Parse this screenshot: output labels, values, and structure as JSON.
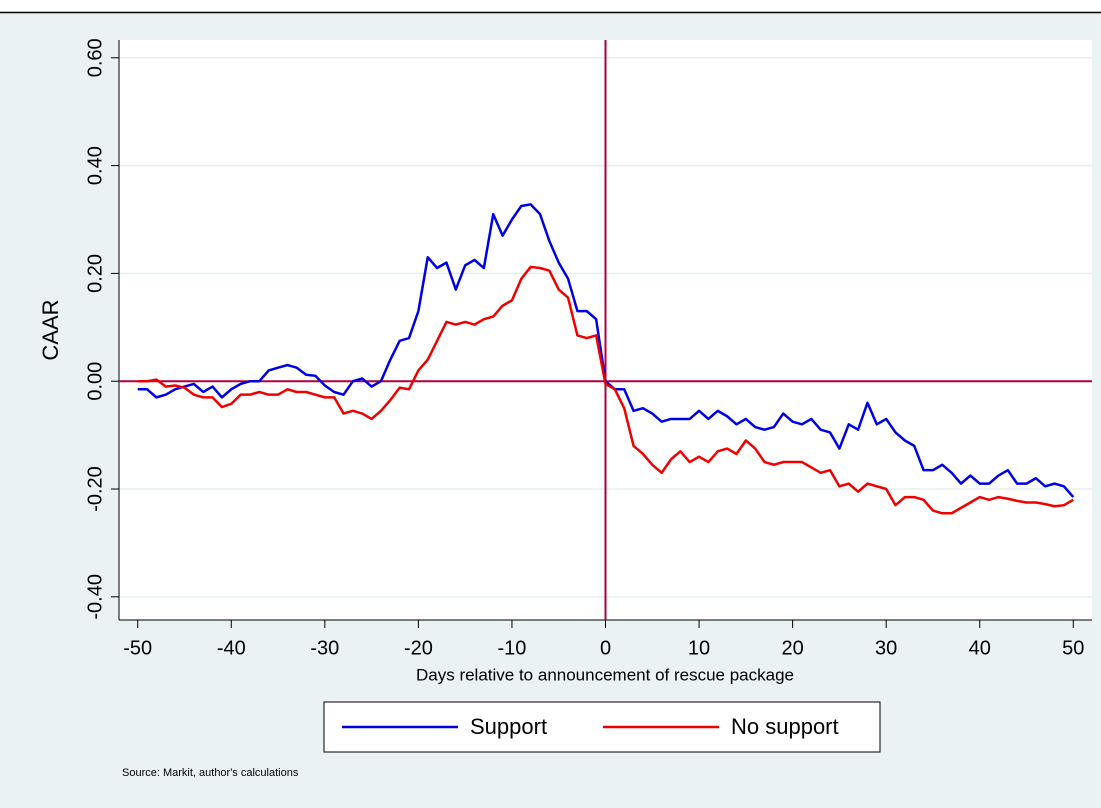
{
  "chart_data": {
    "type": "line",
    "y_label": "CAAR",
    "x_label": "Days relative to announcement of rescue package",
    "source": "Source: Markit, author's calculations",
    "x": [
      -50,
      -49,
      -48,
      -47,
      -46,
      -45,
      -44,
      -43,
      -42,
      -41,
      -40,
      -39,
      -38,
      -37,
      -36,
      -35,
      -34,
      -33,
      -32,
      -31,
      -30,
      -29,
      -28,
      -27,
      -26,
      -25,
      -24,
      -23,
      -22,
      -21,
      -20,
      -19,
      -18,
      -17,
      -16,
      -15,
      -14,
      -13,
      -12,
      -11,
      -10,
      -9,
      -8,
      -7,
      -6,
      -5,
      -4,
      -3,
      -2,
      -1,
      0,
      1,
      2,
      3,
      4,
      5,
      6,
      7,
      8,
      9,
      10,
      11,
      12,
      13,
      14,
      15,
      16,
      17,
      18,
      19,
      20,
      21,
      22,
      23,
      24,
      25,
      26,
      27,
      28,
      29,
      30,
      31,
      32,
      33,
      34,
      35,
      36,
      37,
      38,
      39,
      40,
      41,
      42,
      43,
      44,
      45,
      46,
      47,
      48,
      49,
      50
    ],
    "series": [
      {
        "name": "Support",
        "color": "#0000e6",
        "values": [
          -0.015,
          -0.015,
          -0.03,
          -0.025,
          -0.015,
          -0.01,
          -0.005,
          -0.02,
          -0.01,
          -0.03,
          -0.015,
          -0.005,
          0.0,
          0.0,
          0.02,
          0.025,
          0.03,
          0.025,
          0.012,
          0.01,
          -0.008,
          -0.02,
          -0.025,
          0.0,
          0.005,
          -0.01,
          0.0,
          0.04,
          0.075,
          0.08,
          0.13,
          0.23,
          0.21,
          0.22,
          0.17,
          0.215,
          0.225,
          0.21,
          0.31,
          0.27,
          0.3,
          0.325,
          0.328,
          0.31,
          0.26,
          0.22,
          0.19,
          0.13,
          0.13,
          0.115,
          0.0,
          -0.015,
          -0.015,
          -0.055,
          -0.05,
          -0.06,
          -0.075,
          -0.07,
          -0.07,
          -0.07,
          -0.055,
          -0.07,
          -0.055,
          -0.065,
          -0.08,
          -0.07,
          -0.085,
          -0.09,
          -0.085,
          -0.06,
          -0.075,
          -0.08,
          -0.07,
          -0.09,
          -0.095,
          -0.125,
          -0.08,
          -0.09,
          -0.04,
          -0.08,
          -0.07,
          -0.095,
          -0.11,
          -0.12,
          -0.165,
          -0.165,
          -0.155,
          -0.17,
          -0.19,
          -0.175,
          -0.19,
          -0.19,
          -0.175,
          -0.165,
          -0.19,
          -0.19,
          -0.18,
          -0.195,
          -0.19,
          -0.195,
          -0.215
        ]
      },
      {
        "name": "No support",
        "color": "#f00000",
        "values": [
          0.0,
          0.0,
          0.003,
          -0.01,
          -0.008,
          -0.012,
          -0.025,
          -0.03,
          -0.03,
          -0.048,
          -0.042,
          -0.025,
          -0.025,
          -0.02,
          -0.025,
          -0.025,
          -0.015,
          -0.02,
          -0.02,
          -0.025,
          -0.03,
          -0.03,
          -0.06,
          -0.055,
          -0.06,
          -0.07,
          -0.055,
          -0.035,
          -0.012,
          -0.015,
          0.02,
          0.04,
          0.075,
          0.11,
          0.105,
          0.11,
          0.105,
          0.115,
          0.12,
          0.14,
          0.15,
          0.19,
          0.212,
          0.21,
          0.205,
          0.17,
          0.155,
          0.085,
          0.08,
          0.085,
          -0.005,
          -0.015,
          -0.05,
          -0.12,
          -0.135,
          -0.155,
          -0.17,
          -0.145,
          -0.13,
          -0.15,
          -0.14,
          -0.15,
          -0.13,
          -0.125,
          -0.135,
          -0.11,
          -0.125,
          -0.15,
          -0.155,
          -0.15,
          -0.15,
          -0.15,
          -0.16,
          -0.17,
          -0.165,
          -0.195,
          -0.19,
          -0.205,
          -0.19,
          -0.195,
          -0.2,
          -0.23,
          -0.215,
          -0.215,
          -0.22,
          -0.24,
          -0.245,
          -0.245,
          -0.235,
          -0.225,
          -0.215,
          -0.22,
          -0.215,
          -0.218,
          -0.222,
          -0.225,
          -0.225,
          -0.228,
          -0.232,
          -0.23,
          -0.22
        ]
      }
    ],
    "xlim": [
      -52,
      52
    ],
    "ylim": [
      -0.443,
      0.633
    ],
    "xticks": [
      -50,
      -40,
      -30,
      -20,
      -10,
      0,
      10,
      20,
      30,
      40,
      50
    ],
    "yticks": [
      {
        "value": -0.4,
        "label": "-0.40"
      },
      {
        "value": -0.2,
        "label": "-0.20"
      },
      {
        "value": 0,
        "label": "0.00"
      },
      {
        "value": 0.2,
        "label": "0.20"
      },
      {
        "value": 0.4,
        "label": "0.40"
      },
      {
        "value": 0.6,
        "label": "0.60"
      }
    ],
    "grid": true,
    "xline": 0,
    "yline": 0,
    "reference_color": "#b0003a",
    "legend": "bottom"
  }
}
